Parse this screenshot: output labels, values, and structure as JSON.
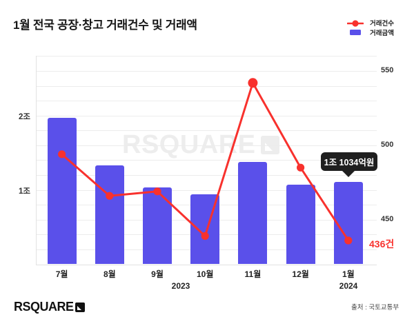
{
  "header": {
    "title": "1월 전국 공장·창고 거래건수 및 거래액",
    "legend": [
      {
        "label": "거래건수",
        "marker": "line-dot",
        "color": "#f8312d"
      },
      {
        "label": "거래금액",
        "marker": "bar-swatch",
        "color": "#5a50ea"
      }
    ]
  },
  "chart_data": {
    "type": "combo",
    "categories": [
      "7월",
      "8월",
      "9월",
      "10월",
      "11월",
      "12월",
      "1월"
    ],
    "series": [
      {
        "name": "거래금액",
        "type": "bar",
        "axis": "left",
        "unit": "조원",
        "values": [
          1.97,
          1.33,
          1.03,
          0.94,
          1.38,
          1.07,
          1.1034
        ]
      },
      {
        "name": "거래건수",
        "type": "line",
        "axis": "right",
        "unit": "건",
        "values": [
          494,
          466,
          469,
          439,
          542,
          485,
          436
        ]
      }
    ],
    "left_axis": {
      "ticks": [
        {
          "label": "2조",
          "value": 2
        },
        {
          "label": "1조",
          "value": 1
        }
      ],
      "range": [
        0,
        2.8
      ],
      "gridline_step": 0.2
    },
    "right_axis": {
      "ticks": [
        {
          "label": "550",
          "value": 550
        },
        {
          "label": "500",
          "value": 500
        },
        {
          "label": "450",
          "value": 450
        }
      ],
      "range": [
        420,
        560
      ],
      "gridline_step": 10
    },
    "year_labels": [
      "2023",
      "2024"
    ],
    "grid": true,
    "legend_position": "top-right"
  },
  "annotations": {
    "tooltip_text": "1조 1034억원",
    "tooltip_target": "1월",
    "last_point_label": "436건"
  },
  "watermark": {
    "text": "RSQUARE"
  },
  "footer": {
    "logo_text": "RSQUARE",
    "source": "출처 : 국토교통부"
  },
  "colors": {
    "bar": "#5a50ea",
    "line": "#f8312d",
    "tooltip_bg": "#1f1f1f",
    "grid": "#ececec",
    "axis_text": "#333333",
    "title_text": "#161616"
  }
}
